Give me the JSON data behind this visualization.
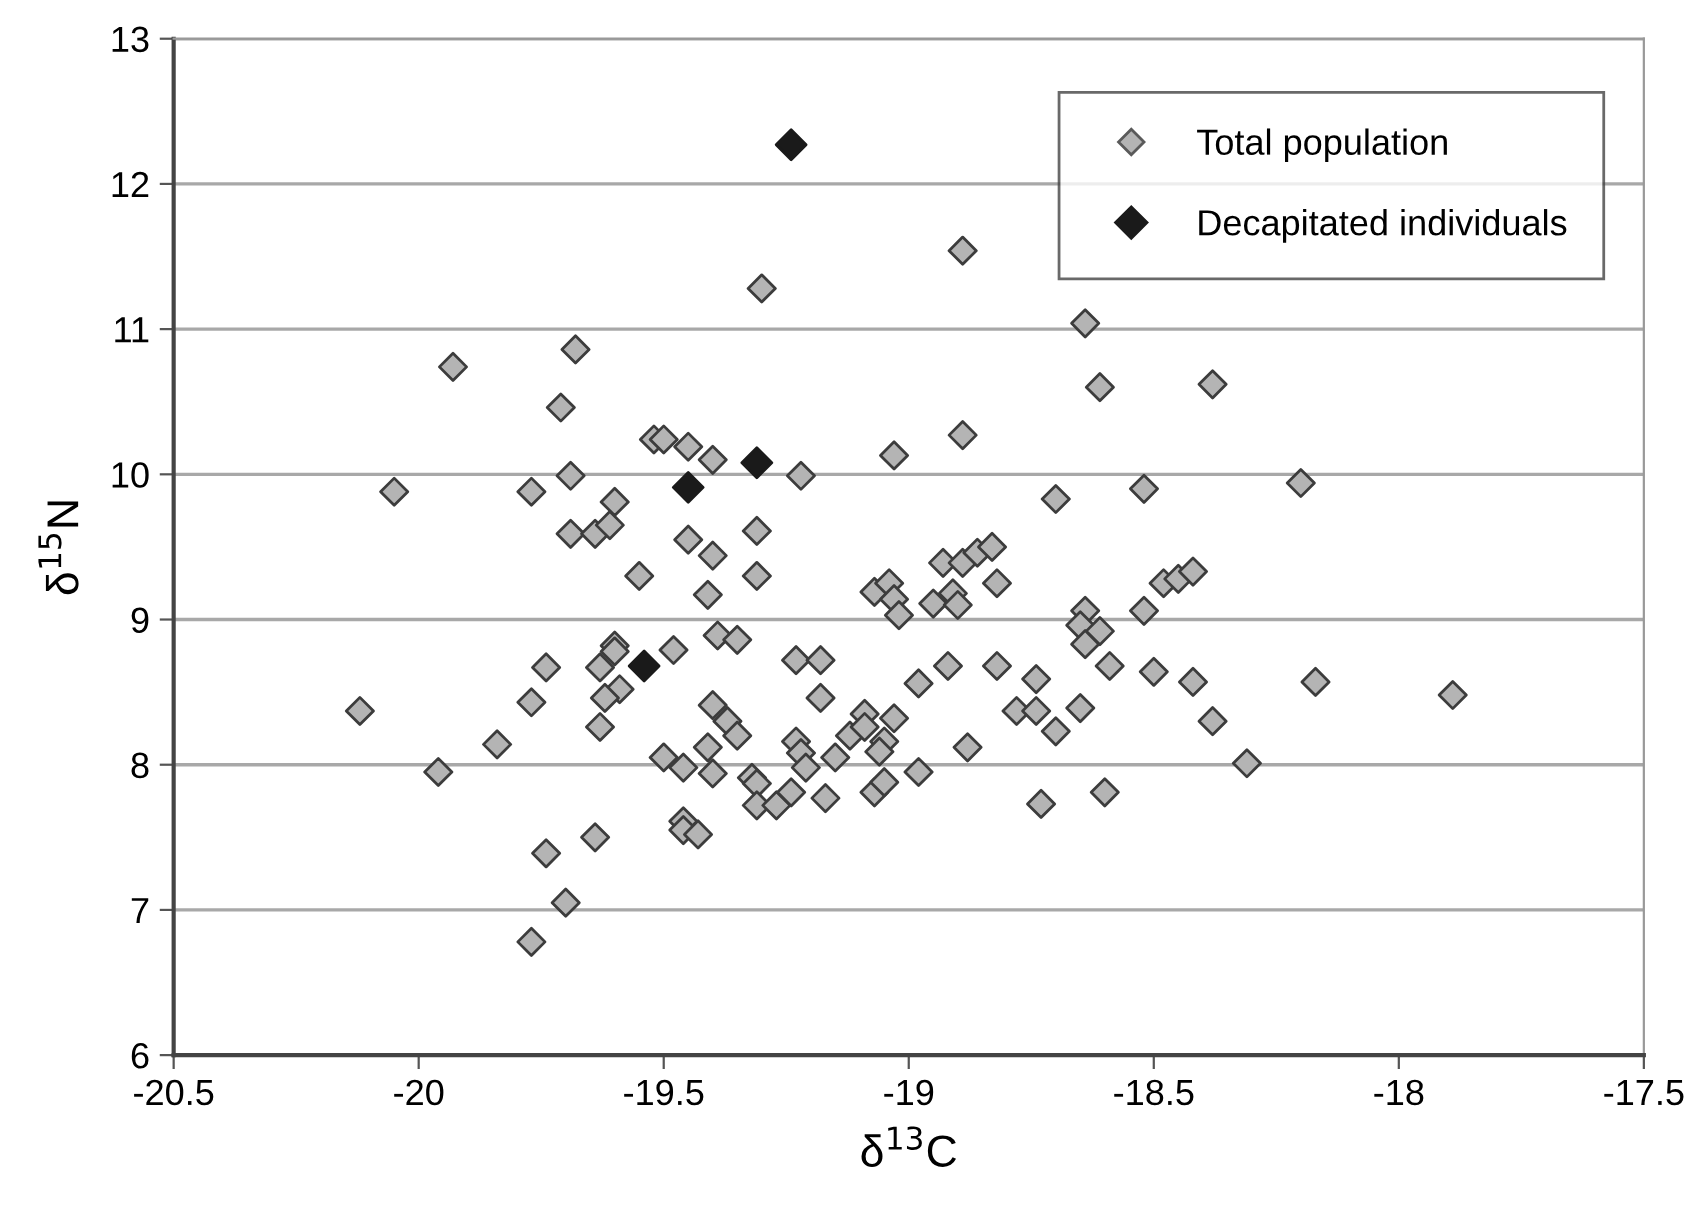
{
  "chart_data": {
    "type": "scatter",
    "xlabel": "δ$^{13}$C",
    "ylabel": "δ$^{15}$N",
    "xlim": [
      -20.5,
      -17.5
    ],
    "xticks": [
      -20.5,
      -20,
      -19.5,
      -19,
      -18.5,
      -18,
      -17.5
    ],
    "ylim": [
      6,
      13
    ],
    "yticks": [
      6,
      7,
      8,
      9,
      10,
      11,
      12,
      13
    ],
    "grid": "y",
    "legend": "top right",
    "marker": "diamond",
    "series": [
      {
        "name": "Total population",
        "color": "#b4b4b4",
        "x": [
          -19.68,
          -19.93,
          -19.71,
          -19.52,
          -19.69,
          -20.05,
          -19.77,
          -19.6,
          -19.69,
          -19.64,
          -19.61,
          -19.55,
          -19.6,
          -19.6,
          -19.63,
          -19.74,
          -19.48,
          -19.77,
          -20.12,
          -19.59,
          -19.62,
          -19.63,
          -19.84,
          -19.96,
          -19.64,
          -19.74,
          -19.7,
          -19.77,
          -18.89,
          -19.3,
          -18.64,
          -18.61,
          -19.5,
          -19.45,
          -19.4,
          -19.22,
          -19.03,
          -18.89,
          -18.7,
          -18.52,
          -19.45,
          -19.31,
          -19.4,
          -19.31,
          -19.41,
          -19.39,
          -19.35,
          -19.23,
          -19.18,
          -19.18,
          -19.4,
          -19.37,
          -19.35,
          -19.41,
          -19.5,
          -19.46,
          -19.4,
          -19.23,
          -19.22,
          -19.21,
          -19.32,
          -19.31,
          -19.31,
          -19.27,
          -19.24,
          -19.17,
          -19.46,
          -19.46,
          -19.43,
          -19.15,
          -19.12,
          -19.09,
          -19.09,
          -19.05,
          -19.06,
          -19.03,
          -19.07,
          -19.05,
          -18.98,
          -18.88,
          -18.98,
          -18.92,
          -19.07,
          -19.04,
          -19.03,
          -19.02,
          -18.93,
          -18.89,
          -18.86,
          -18.83,
          -18.95,
          -18.91,
          -18.9,
          -18.82,
          -18.82,
          -18.74,
          -18.78,
          -18.74,
          -18.7,
          -18.65,
          -18.73,
          -18.6,
          -18.64,
          -18.65,
          -18.61,
          -18.64,
          -18.59,
          -18.52,
          -18.48,
          -18.45,
          -18.42,
          -18.5,
          -18.42,
          -18.38,
          -18.31,
          -18.17,
          -17.89,
          -18.38,
          -18.2
        ],
        "values": [
          10.86,
          10.74,
          10.46,
          10.24,
          9.99,
          9.88,
          9.88,
          9.81,
          9.59,
          9.59,
          9.65,
          9.3,
          8.82,
          8.78,
          8.67,
          8.67,
          8.79,
          8.43,
          8.37,
          8.52,
          8.46,
          8.26,
          8.14,
          7.95,
          7.5,
          7.39,
          7.05,
          6.78,
          11.54,
          11.28,
          11.04,
          10.6,
          10.24,
          10.19,
          10.1,
          9.99,
          10.13,
          10.27,
          9.83,
          9.9,
          9.55,
          9.61,
          9.44,
          9.3,
          9.17,
          8.89,
          8.86,
          8.72,
          8.72,
          8.46,
          8.41,
          8.3,
          8.2,
          8.12,
          8.05,
          7.98,
          7.94,
          8.16,
          8.08,
          7.98,
          7.91,
          7.87,
          7.72,
          7.72,
          7.81,
          7.77,
          7.61,
          7.55,
          7.52,
          8.05,
          8.2,
          8.35,
          8.26,
          8.16,
          8.09,
          8.32,
          7.81,
          7.88,
          7.95,
          8.12,
          8.56,
          8.68,
          9.19,
          9.25,
          9.14,
          9.03,
          9.39,
          9.39,
          9.46,
          9.5,
          9.11,
          9.18,
          9.1,
          9.25,
          8.68,
          8.59,
          8.37,
          8.37,
          8.23,
          8.39,
          7.73,
          7.81,
          9.06,
          8.96,
          8.92,
          8.83,
          8.68,
          9.06,
          9.25,
          9.28,
          9.33,
          8.64,
          8.57,
          8.3,
          8.01,
          8.57,
          8.48,
          10.62,
          9.94
        ]
      },
      {
        "name": "Decapitated individuals",
        "color": "#1a1a1a",
        "x": [
          -19.24,
          -19.31,
          -19.45,
          -19.54
        ],
        "values": [
          12.27,
          10.08,
          9.91,
          8.68
        ]
      }
    ]
  }
}
